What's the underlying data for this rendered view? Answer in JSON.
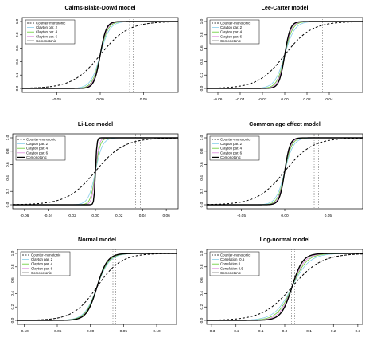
{
  "figure": {
    "panels": [
      {
        "title": "Cairns-Blake-Dowd model",
        "xticks": [
          "-0.05",
          "0.00",
          "0.05"
        ],
        "yticks": [
          "0.0",
          "0.2",
          "0.4",
          "0.6",
          "0.8",
          "1.0"
        ],
        "legend": [
          "Counter-monotonic",
          "Clayton par. 2",
          "Clayton par. 4",
          "Clayton par. 6",
          "Comonotonic"
        ]
      },
      {
        "title": "Lee-Carter model",
        "xticks": [
          "-0.06",
          "-0.04",
          "-0.02",
          "0.00",
          "0.02",
          "0.04"
        ],
        "yticks": [
          "0.0",
          "0.2",
          "0.4",
          "0.6",
          "0.8",
          "1.0"
        ],
        "legend": [
          "Counter-monotonic",
          "Clayton par. 2",
          "Clayton par. 4",
          "Clayton par. 6",
          "Comonotonic"
        ]
      },
      {
        "title": "Li-Lee model",
        "xticks": [
          "-0.06",
          "-0.04",
          "-0.02",
          "0.00",
          "0.02",
          "0.04",
          "0.06"
        ],
        "yticks": [
          "0.0",
          "0.2",
          "0.4",
          "0.6",
          "0.8",
          "1.0"
        ],
        "legend": [
          "Counter-monotonic",
          "Clayton par. 2",
          "Clayton par. 4",
          "Clayton par. 6",
          "Comonotonic"
        ]
      },
      {
        "title": "Common age effect model",
        "xticks": [
          "-0.05",
          "0.00",
          "0.05"
        ],
        "yticks": [
          "0.0",
          "0.2",
          "0.4",
          "0.6",
          "0.8",
          "1.0"
        ],
        "legend": [
          "Counter-monotonic",
          "Clayton par. 2",
          "Clayton par. 4",
          "Clayton par. 6",
          "Comonotonic"
        ]
      },
      {
        "title": "Normal model",
        "xticks": [
          "-0.10",
          "-0.05",
          "0.00",
          "0.05",
          "0.10"
        ],
        "yticks": [
          "0.0",
          "0.2",
          "0.4",
          "0.6",
          "0.8",
          "1.0"
        ],
        "legend": [
          "Counter-monotonic",
          "Clayton par. 2",
          "Clayton par. 4",
          "Clayton par. 6",
          "Comonotonic"
        ]
      },
      {
        "title": "Log-normal model",
        "xticks": [
          "-0.3",
          "-0.2",
          "-0.1",
          "0.0",
          "0.1",
          "0.2",
          "0.3"
        ],
        "yticks": [
          "0.0",
          "0.2",
          "0.4",
          "0.6",
          "0.8",
          "1.0"
        ],
        "legend": [
          "Counter-monotonic",
          "Correlation -0.5",
          "Correlation 0",
          "Correlation 0.5",
          "Comonotonic"
        ]
      }
    ]
  },
  "chart_data": [
    {
      "type": "line",
      "title": "Cairns-Blake-Dowd model",
      "xlim": [
        -0.09,
        0.09
      ],
      "ylim": [
        0,
        1
      ],
      "center": 0.0,
      "series": [
        {
          "name": "Counter-monotonic",
          "color": "#000000",
          "dash": "dashed",
          "scale": 0.016
        },
        {
          "name": "Clayton par. 2",
          "color": "#87ceeb",
          "dash": "solid",
          "scale": 0.0055
        },
        {
          "name": "Clayton par. 4",
          "color": "#66cc33",
          "dash": "solid",
          "scale": 0.0045
        },
        {
          "name": "Clayton par. 6",
          "color": "#dd88dd",
          "dash": "solid",
          "scale": 0.004
        },
        {
          "name": "Comonotonic",
          "color": "#000000",
          "dash": "solid",
          "scale": 0.0035
        }
      ],
      "vlines": [
        0.034,
        0.038
      ]
    },
    {
      "type": "line",
      "title": "Lee-Carter model",
      "xlim": [
        -0.07,
        0.07
      ],
      "ylim": [
        0,
        1
      ],
      "center": 0.0,
      "series": [
        {
          "name": "Counter-monotonic",
          "color": "#000000",
          "dash": "dashed",
          "scale": 0.012
        },
        {
          "name": "Clayton par. 2",
          "color": "#87ceeb",
          "dash": "solid",
          "scale": 0.0045
        },
        {
          "name": "Clayton par. 4",
          "color": "#66cc33",
          "dash": "solid",
          "scale": 0.0035
        },
        {
          "name": "Clayton par. 6",
          "color": "#dd88dd",
          "dash": "solid",
          "scale": 0.003
        },
        {
          "name": "Comonotonic",
          "color": "#000000",
          "dash": "solid",
          "scale": 0.0025
        }
      ],
      "vlines": [
        0.034,
        0.039
      ]
    },
    {
      "type": "line",
      "title": "Li-Lee model",
      "xlim": [
        -0.07,
        0.07
      ],
      "ylim": [
        0,
        1
      ],
      "center": 0.0,
      "series": [
        {
          "name": "Counter-monotonic",
          "color": "#000000",
          "dash": "dashed",
          "scale": 0.012
        },
        {
          "name": "Clayton par. 2",
          "color": "#87ceeb",
          "dash": "solid",
          "scale": 0.003
        },
        {
          "name": "Clayton par. 4",
          "color": "#66cc33",
          "dash": "solid",
          "scale": 0.002
        },
        {
          "name": "Clayton par. 6",
          "color": "#dd88dd",
          "dash": "solid",
          "scale": 0.0015
        },
        {
          "name": "Comonotonic",
          "color": "#000000",
          "dash": "solid",
          "scale": 0.0006
        }
      ],
      "vlines": [
        0.034,
        0.038
      ]
    },
    {
      "type": "line",
      "title": "Common age effect model",
      "xlim": [
        -0.09,
        0.09
      ],
      "ylim": [
        0,
        1
      ],
      "center": 0.0,
      "series": [
        {
          "name": "Counter-monotonic",
          "color": "#000000",
          "dash": "dashed",
          "scale": 0.016
        },
        {
          "name": "Clayton par. 2",
          "color": "#87ceeb",
          "dash": "solid",
          "scale": 0.005
        },
        {
          "name": "Clayton par. 4",
          "color": "#66cc33",
          "dash": "solid",
          "scale": 0.004
        },
        {
          "name": "Clayton par. 6",
          "color": "#dd88dd",
          "dash": "solid",
          "scale": 0.0035
        },
        {
          "name": "Comonotonic",
          "color": "#000000",
          "dash": "solid",
          "scale": 0.003
        }
      ],
      "vlines": [
        0.034,
        0.039
      ]
    },
    {
      "type": "line",
      "title": "Normal model",
      "xlim": [
        -0.11,
        0.13
      ],
      "ylim": [
        0,
        1
      ],
      "center": 0.01,
      "series": [
        {
          "name": "Counter-monotonic",
          "color": "#000000",
          "dash": "dashed",
          "scale": 0.018
        },
        {
          "name": "Clayton par. 2",
          "color": "#87ceeb",
          "dash": "solid",
          "scale": 0.0095
        },
        {
          "name": "Clayton par. 4",
          "color": "#66cc33",
          "dash": "solid",
          "scale": 0.0088
        },
        {
          "name": "Clayton par. 6",
          "color": "#dd88dd",
          "dash": "solid",
          "scale": 0.0082
        },
        {
          "name": "Comonotonic",
          "color": "#000000",
          "dash": "solid",
          "scale": 0.0078
        }
      ],
      "vlines": [
        0.034,
        0.038
      ]
    },
    {
      "type": "line",
      "title": "Log-normal model",
      "xlim": [
        -0.32,
        0.32
      ],
      "ylim": [
        0,
        1
      ],
      "center": 0.03,
      "series": [
        {
          "name": "Counter-monotonic",
          "color": "#000000",
          "dash": "dashed",
          "scale": 0.06
        },
        {
          "name": "Correlation -0.5",
          "color": "#87ceeb",
          "dash": "solid",
          "scale": 0.036
        },
        {
          "name": "Correlation 0",
          "color": "#66cc33",
          "dash": "solid",
          "scale": 0.03
        },
        {
          "name": "Correlation 0.5",
          "color": "#dd88dd",
          "dash": "solid",
          "scale": 0.026
        },
        {
          "name": "Comonotonic",
          "color": "#000000",
          "dash": "solid",
          "scale": 0.022
        }
      ],
      "vlines": [
        0.028,
        0.04
      ]
    }
  ]
}
